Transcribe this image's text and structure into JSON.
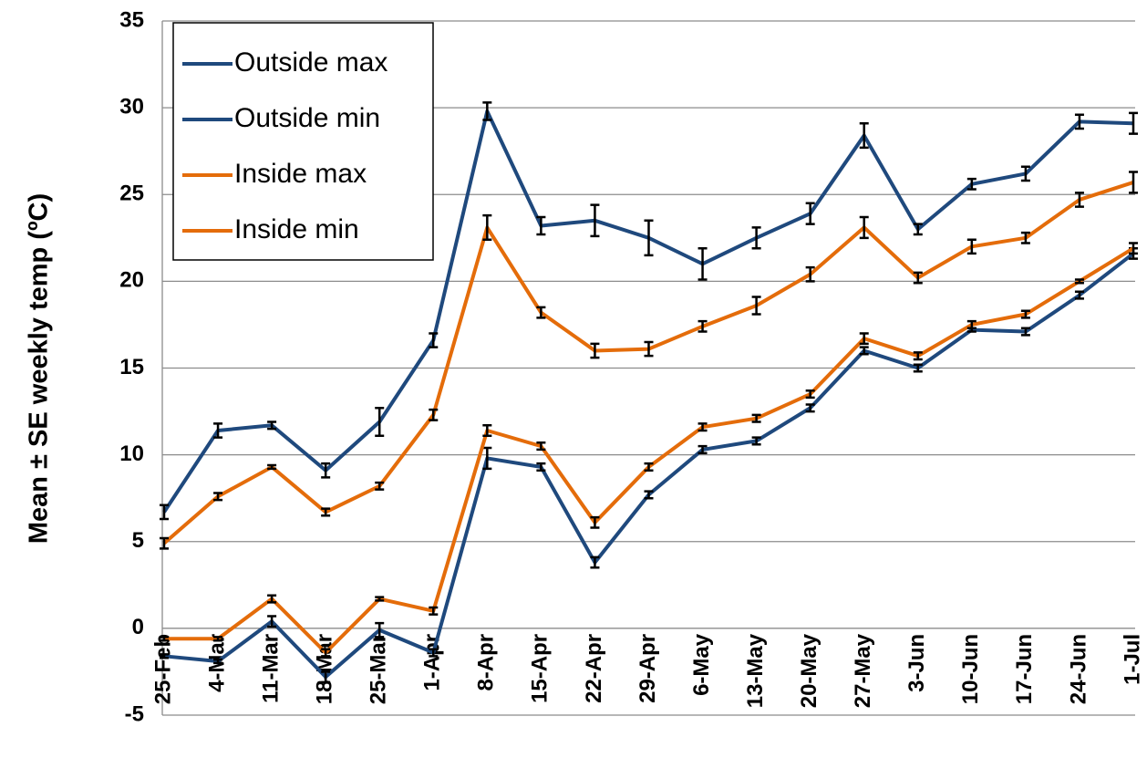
{
  "chart_data": {
    "type": "line",
    "y_label": "Mean ± SE weekly temp (ºC)",
    "categories": [
      "25-Feb",
      "4-Mar",
      "11-Mar",
      "18-Mar",
      "25-Mar",
      "1-Apr",
      "8-Apr",
      "15-Apr",
      "22-Apr",
      "29-Apr",
      "6-May",
      "13-May",
      "20-May",
      "27-May",
      "3-Jun",
      "10-Jun",
      "17-Jun",
      "24-Jun",
      "1-Jul"
    ],
    "series": [
      {
        "name": "Outside max",
        "color": "#1f497d",
        "values": [
          6.7,
          11.4,
          11.7,
          9.1,
          11.9,
          16.6,
          29.8,
          23.2,
          23.5,
          22.5,
          21.0,
          22.5,
          23.9,
          28.4,
          23.0,
          25.6,
          26.2,
          29.2,
          29.1
        ],
        "errors": [
          0.4,
          0.4,
          0.2,
          0.4,
          0.8,
          0.4,
          0.5,
          0.5,
          0.9,
          1.0,
          0.9,
          0.6,
          0.6,
          0.7,
          0.3,
          0.3,
          0.4,
          0.4,
          0.6
        ]
      },
      {
        "name": "Outside min",
        "color": "#1f497d",
        "values": [
          -1.6,
          -1.9,
          0.4,
          -2.8,
          -0.1,
          -1.4,
          9.8,
          9.3,
          3.8,
          7.7,
          10.3,
          10.8,
          12.7,
          16.0,
          15.0,
          17.2,
          17.1,
          19.2,
          21.6
        ],
        "errors": [
          0.1,
          0.1,
          0.3,
          0.3,
          0.4,
          0.2,
          0.6,
          0.2,
          0.3,
          0.2,
          0.2,
          0.2,
          0.2,
          0.2,
          0.2,
          0.1,
          0.2,
          0.2,
          0.3
        ]
      },
      {
        "name": "Inside max",
        "color": "#e46c0a",
        "values": [
          4.9,
          7.6,
          9.3,
          6.7,
          8.2,
          12.3,
          23.1,
          18.2,
          16.0,
          16.1,
          17.4,
          18.6,
          20.4,
          23.1,
          20.2,
          22.0,
          22.5,
          24.7,
          25.7
        ],
        "errors": [
          0.3,
          0.2,
          0.1,
          0.2,
          0.2,
          0.3,
          0.7,
          0.3,
          0.4,
          0.4,
          0.3,
          0.5,
          0.4,
          0.6,
          0.3,
          0.4,
          0.3,
          0.4,
          0.6
        ]
      },
      {
        "name": "Inside min",
        "color": "#e46c0a",
        "values": [
          -0.6,
          -0.6,
          1.7,
          -1.4,
          1.7,
          1.0,
          11.4,
          10.5,
          6.1,
          9.3,
          11.6,
          12.1,
          13.5,
          16.7,
          15.7,
          17.5,
          18.1,
          20.0,
          21.9
        ],
        "errors": [
          0.1,
          0.1,
          0.2,
          0.2,
          0.1,
          0.2,
          0.3,
          0.2,
          0.3,
          0.2,
          0.2,
          0.2,
          0.2,
          0.3,
          0.2,
          0.2,
          0.2,
          0.1,
          0.3
        ]
      }
    ],
    "ylim": [
      -5,
      35
    ],
    "yticks": [
      -5,
      0,
      5,
      10,
      15,
      20,
      25,
      30,
      35
    ],
    "grid": true,
    "legend": "upper left"
  }
}
